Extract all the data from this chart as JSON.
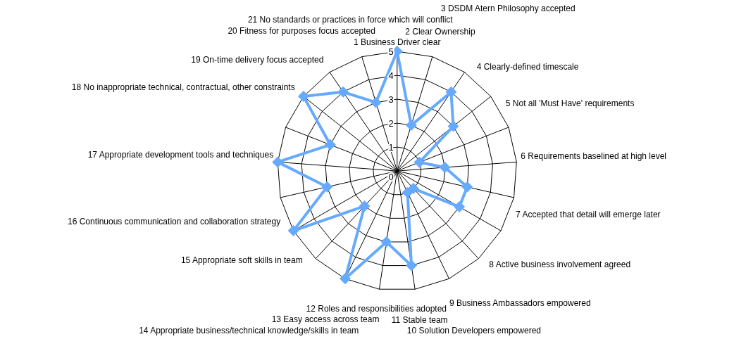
{
  "chart_data": {
    "type": "radar",
    "categories": [
      "1 Business Driver clear",
      "2 Clear Ownership",
      "3 DSDM Atern Philosophy accepted",
      "4 Clearly-defined timescale",
      "5 Not all 'Must Have' requirements",
      "6 Requirements baselined at high level",
      "7 Accepted that detail will emerge later",
      "8 Active business involvement agreed",
      "9 Business Ambassadors empowered",
      "10 Solution Developers empowered",
      "11 Stable team",
      "12 Roles and responsibilities adopted",
      "13 Easy access across team",
      "14 Appropriate business/technical knowledge/skills in team",
      "15 Appropriate soft skills in team",
      "16 Continuous communication and collaboration strategy",
      "17 Appropriate development tools and techniques",
      "18 No inappropriate technical, contractual, other constraints",
      "19 On-time delivery focus accepted",
      "20 Fitness for purposes focus accepted",
      "21 No standards or practices in force which will conflict"
    ],
    "series": [
      {
        "color": "#66aaff",
        "values": [
          5,
          2,
          4,
          3,
          1,
          2,
          3,
          3,
          1,
          1,
          4,
          3,
          5,
          2,
          5,
          3,
          5,
          3,
          5,
          4,
          3
        ]
      }
    ],
    "ylim": [
      0,
      5
    ],
    "yticks": [
      0,
      1,
      2,
      3,
      4,
      5
    ],
    "grid": true,
    "marker": "diamond",
    "line_style": "solid"
  }
}
